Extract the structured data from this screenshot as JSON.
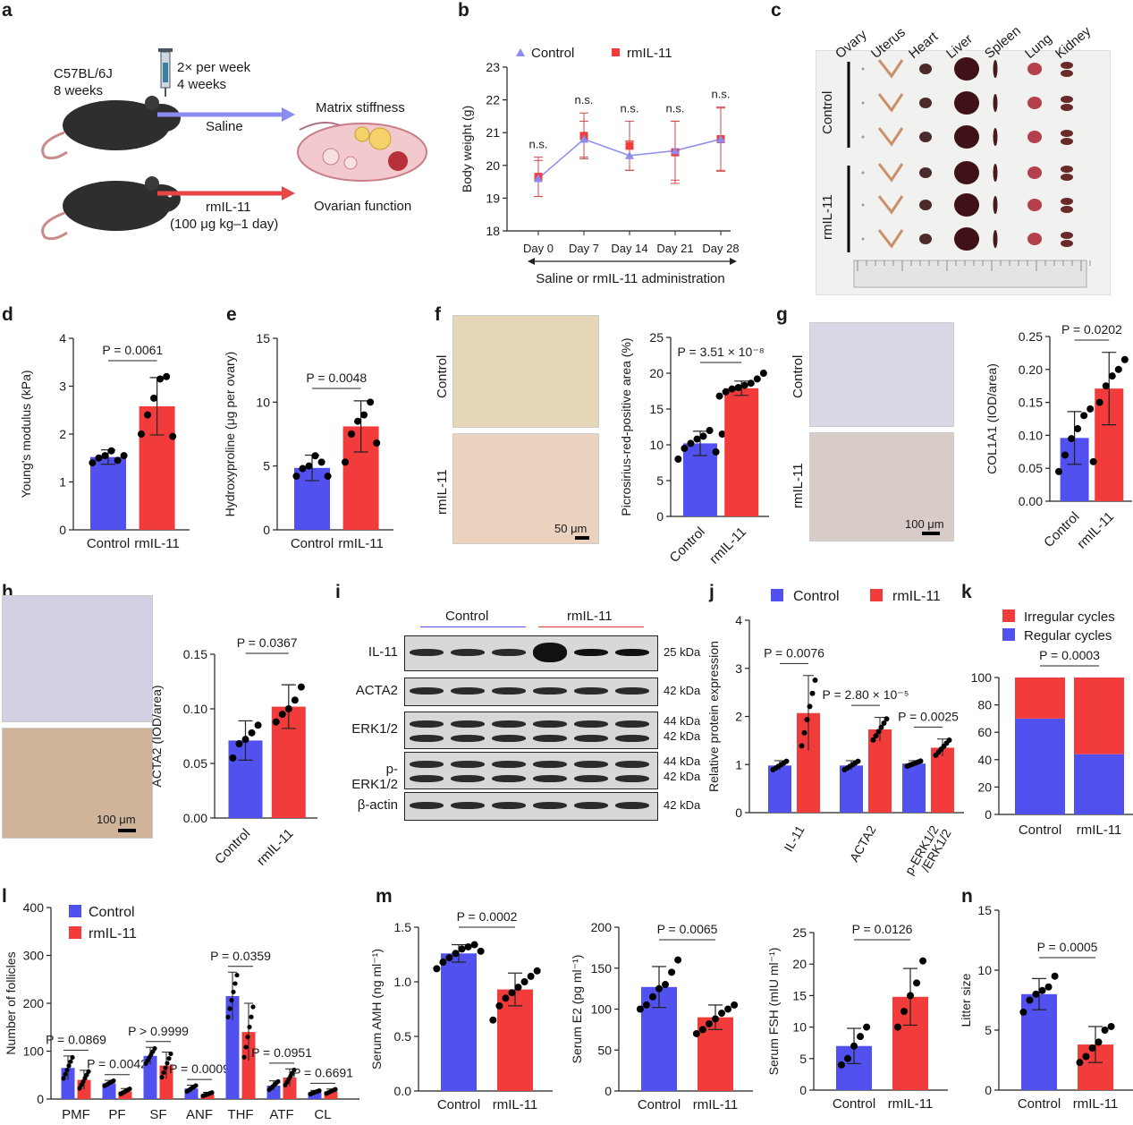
{
  "colors": {
    "control": "#5151f0",
    "rmil11": "#f23c3c",
    "axis": "#222222",
    "schematic_saline": "#8c8cf0",
    "schematic_rmil": "#e84545"
  },
  "panels": {
    "a": {
      "letter": "a",
      "mouse_strain": "C57BL/6J",
      "mouse_age": "8 weeks",
      "dosing_freq": "2× per week",
      "dosing_duration": "4 weeks",
      "saline_label": "Saline",
      "rmil_label": "rmIL-11",
      "rmil_dose": "(100 μg kg–1 day)",
      "outcome_top": "Matrix stiffness",
      "outcome_bottom": "Ovarian function"
    },
    "b": {
      "letter": "b",
      "legend": [
        "Control",
        "rmIL-11"
      ],
      "ylabel": "Body weight (g)",
      "xlabel": "Saline or rmIL-11 administration",
      "ns_label": "n.s."
    },
    "c": {
      "letter": "c",
      "organs": [
        "Ovary",
        "Uterus",
        "Heart",
        "Liver",
        "Spleen",
        "Lung",
        "Kidney"
      ],
      "group_control": "Control",
      "group_rmil": "rmIL-11"
    },
    "d": {
      "letter": "d",
      "ylabel": "Young's modulus (kPa)",
      "pval": "P = 0.0061"
    },
    "e": {
      "letter": "e",
      "ylabel": "Hydroxyproline (μg per ovary)",
      "pval": "P = 0.0048"
    },
    "f": {
      "letter": "f",
      "ylabel": "Picrosirius-red-positive area (%)",
      "pval": "P = 3.51 × 10⁻⁸",
      "img_top": "Control",
      "img_bottom": "rmIL-11",
      "scale": "50 μm"
    },
    "g": {
      "letter": "g",
      "ylabel": "COL1A1 (IOD/area)",
      "pval": "P = 0.0202",
      "img_top": "Control",
      "img_bottom": "rmIL-11",
      "scale": "100 μm"
    },
    "h": {
      "letter": "h",
      "ylabel": "ACTA2 (IOD/area)",
      "pval": "P = 0.0367",
      "scale": "100 μm"
    },
    "i": {
      "letter": "i",
      "group_control": "Control",
      "group_rmil": "rmIL-11",
      "blots": [
        {
          "name": "IL-11",
          "kda": [
            "25 kDa"
          ]
        },
        {
          "name": "ACTA2",
          "kda": [
            "42 kDa"
          ]
        },
        {
          "name": "ERK1/2",
          "kda": [
            "44 kDa",
            "42 kDa"
          ]
        },
        {
          "name": "p-ERK1/2",
          "kda": [
            "44 kDa",
            "42 kDa"
          ]
        },
        {
          "name": "β-actin",
          "kda": [
            "42 kDa"
          ]
        }
      ]
    },
    "j": {
      "letter": "j",
      "legend": [
        "Control",
        "rmIL-11"
      ],
      "ylabel": "Relative protein expression",
      "pvals": [
        "P = 0.0076",
        "P = 2.80 × 10⁻⁵",
        "P = 0.0025"
      ]
    },
    "k": {
      "letter": "k",
      "legend": [
        "Irregular cycles",
        "Regular cycles"
      ],
      "pval": "P = 0.0003"
    },
    "l": {
      "letter": "l",
      "legend": [
        "Control",
        "rmIL-11"
      ],
      "ylabel": "Number of follicles",
      "pvals": [
        "P = 0.0869",
        "P = 0.0042",
        "P > 0.9999",
        "P = 0.0009",
        "P = 0.0359",
        "P = 0.0951",
        "P = 0.6691"
      ]
    },
    "m": {
      "letter": "m",
      "ylabels": [
        "Serum AMH (ng ml⁻¹)",
        "Serum E2 (pg ml⁻¹)",
        "Serum FSH (mIU ml⁻¹)"
      ],
      "pvals": [
        "P = 0.0002",
        "P = 0.0065",
        "P = 0.0126"
      ]
    },
    "n": {
      "letter": "n",
      "ylabel": "Litter size",
      "pval": "P = 0.0005"
    }
  },
  "chart_data": [
    {
      "id": "b",
      "type": "line",
      "x": [
        "Day 0",
        "Day 7",
        "Day 14",
        "Day 21",
        "Day 28"
      ],
      "ylim": [
        18,
        23
      ],
      "yticks": [
        18,
        19,
        20,
        21,
        22,
        23
      ],
      "series": [
        {
          "name": "Control",
          "values": [
            19.6,
            20.8,
            20.3,
            20.45,
            20.8
          ],
          "err": [
            0.55,
            0.55,
            0.45,
            0.9,
            0.95
          ]
        },
        {
          "name": "rmIL-11",
          "values": [
            19.65,
            20.9,
            20.6,
            20.4,
            20.8
          ],
          "err": [
            0.6,
            0.7,
            0.75,
            0.95,
            0.98
          ]
        }
      ]
    },
    {
      "id": "d",
      "type": "bar",
      "categories": [
        "Control",
        "rmIL-11"
      ],
      "values": [
        1.52,
        2.58
      ],
      "err": [
        0.15,
        0.6
      ],
      "ylim": [
        0,
        4
      ],
      "yticks": [
        0,
        1,
        2,
        3,
        4
      ],
      "points": [
        [
          1.4,
          1.5,
          1.55,
          1.65,
          1.45,
          1.55
        ],
        [
          2.0,
          2.4,
          2.75,
          3.15,
          3.2,
          1.95
        ]
      ]
    },
    {
      "id": "e",
      "type": "bar",
      "categories": [
        "Control",
        "rmIL-11"
      ],
      "values": [
        4.85,
        8.1
      ],
      "err": [
        1.0,
        2.0
      ],
      "ylim": [
        0,
        15
      ],
      "yticks": [
        0,
        5,
        10,
        15
      ],
      "points": [
        [
          4.2,
          4.8,
          5.0,
          5.8,
          5.3,
          4.2
        ],
        [
          5.3,
          7.5,
          8.5,
          9.0,
          10.0,
          6.8
        ]
      ]
    },
    {
      "id": "f",
      "type": "bar",
      "categories": [
        "Control",
        "rmIL-11"
      ],
      "values": [
        10.2,
        17.9
      ],
      "err": [
        1.7,
        1.0
      ],
      "ylim": [
        0,
        25
      ],
      "yticks": [
        0,
        5,
        10,
        15,
        20,
        25
      ],
      "points": [
        [
          8.0,
          9.5,
          10.2,
          10.8,
          11.2,
          12.0,
          9.0,
          11.5
        ],
        [
          16.8,
          17.4,
          17.8,
          18.0,
          18.3,
          18.6,
          19.2,
          20.0
        ]
      ]
    },
    {
      "id": "g",
      "type": "bar",
      "categories": [
        "Control",
        "rmIL-11"
      ],
      "values": [
        0.096,
        0.171
      ],
      "err": [
        0.04,
        0.055
      ],
      "ylim": [
        0,
        0.25
      ],
      "yticks": [
        0,
        0.05,
        0.1,
        0.15,
        0.2,
        0.25
      ],
      "points": [
        [
          0.045,
          0.07,
          0.095,
          0.11,
          0.13,
          0.14
        ],
        [
          0.06,
          0.15,
          0.175,
          0.19,
          0.2,
          0.215
        ]
      ]
    },
    {
      "id": "h",
      "type": "bar",
      "categories": [
        "Control",
        "rmIL-11"
      ],
      "values": [
        0.071,
        0.102
      ],
      "err": [
        0.018,
        0.02
      ],
      "ylim": [
        0,
        0.15
      ],
      "yticks": [
        0,
        0.05,
        0.1,
        0.15
      ],
      "points": [
        [
          0.055,
          0.068,
          0.072,
          0.078,
          0.085
        ],
        [
          0.088,
          0.095,
          0.1,
          0.108,
          0.12
        ]
      ]
    },
    {
      "id": "j",
      "type": "bar",
      "categories": [
        "IL-11",
        "ACTA2",
        "p-ERK1/2 /ERK1/2"
      ],
      "ylim": [
        0,
        4
      ],
      "yticks": [
        0,
        1,
        2,
        3,
        4
      ],
      "series": [
        {
          "name": "Control",
          "values": [
            0.98,
            0.98,
            1.02
          ],
          "err": [
            0.1,
            0.1,
            0.06
          ]
        },
        {
          "name": "rmIL-11",
          "values": [
            2.07,
            1.73,
            1.35
          ],
          "err": [
            0.78,
            0.25,
            0.18
          ]
        }
      ]
    },
    {
      "id": "k",
      "type": "bar",
      "categories": [
        "Control",
        "rmIL-11"
      ],
      "ylim": [
        0,
        100
      ],
      "yticks": [
        0,
        20,
        40,
        60,
        80,
        100
      ],
      "series": [
        {
          "name": "Regular cycles",
          "values": [
            70,
            44
          ]
        },
        {
          "name": "Irregular cycles",
          "values": [
            30,
            56
          ]
        }
      ]
    },
    {
      "id": "l",
      "type": "bar",
      "categories": [
        "PMF",
        "PF",
        "SF",
        "ANF",
        "THF",
        "ATF",
        "CL"
      ],
      "ylim": [
        0,
        400
      ],
      "yticks": [
        0,
        100,
        200,
        300,
        400
      ],
      "series": [
        {
          "name": "Control",
          "values": [
            65,
            33,
            90,
            22,
            215,
            28,
            14
          ],
          "err": [
            25,
            6,
            18,
            7,
            50,
            10,
            4
          ]
        },
        {
          "name": "rmIL-11",
          "values": [
            40,
            16,
            70,
            10,
            140,
            45,
            16
          ],
          "err": [
            20,
            6,
            28,
            4,
            60,
            18,
            5
          ]
        }
      ]
    },
    {
      "id": "m1",
      "type": "bar",
      "categories": [
        "Control",
        "rmIL-11"
      ],
      "values": [
        1.26,
        0.93
      ],
      "err": [
        0.08,
        0.15
      ],
      "ylim": [
        0,
        1.5
      ],
      "yticks": [
        0,
        0.5,
        1.0,
        1.5
      ],
      "points": [
        [
          1.12,
          1.18,
          1.22,
          1.26,
          1.3,
          1.32,
          1.34,
          1.28
        ],
        [
          0.65,
          0.78,
          0.85,
          0.9,
          0.95,
          1.0,
          1.05,
          1.1
        ]
      ]
    },
    {
      "id": "m2",
      "type": "bar",
      "categories": [
        "Control",
        "rmIL-11"
      ],
      "values": [
        127,
        90
      ],
      "err": [
        25,
        15
      ],
      "ylim": [
        0,
        200
      ],
      "yticks": [
        0,
        50,
        100,
        150,
        200
      ],
      "points": [
        [
          100,
          105,
          115,
          125,
          130,
          145,
          160
        ],
        [
          70,
          75,
          82,
          88,
          95,
          100,
          105
        ]
      ]
    },
    {
      "id": "m3",
      "type": "bar",
      "categories": [
        "Control",
        "rmIL-11"
      ],
      "values": [
        7.0,
        14.8
      ],
      "err": [
        2.8,
        4.5
      ],
      "ylim": [
        0,
        25
      ],
      "yticks": [
        0,
        5,
        10,
        15,
        20,
        25
      ],
      "points": [
        [
          4.0,
          5.0,
          7.0,
          8.5,
          10.0
        ],
        [
          10.0,
          12.5,
          15.0,
          17.0,
          20.5
        ]
      ]
    },
    {
      "id": "n",
      "type": "bar",
      "categories": [
        "Control",
        "rmIL-11"
      ],
      "values": [
        8.0,
        3.8
      ],
      "err": [
        1.3,
        1.5
      ],
      "ylim": [
        0,
        15
      ],
      "yticks": [
        0,
        5,
        10,
        15
      ],
      "points": [
        [
          6.5,
          7.5,
          8.0,
          8.3,
          8.6,
          9.5
        ],
        [
          2.3,
          2.8,
          3.5,
          4.0,
          5.0,
          5.3
        ]
      ]
    }
  ]
}
